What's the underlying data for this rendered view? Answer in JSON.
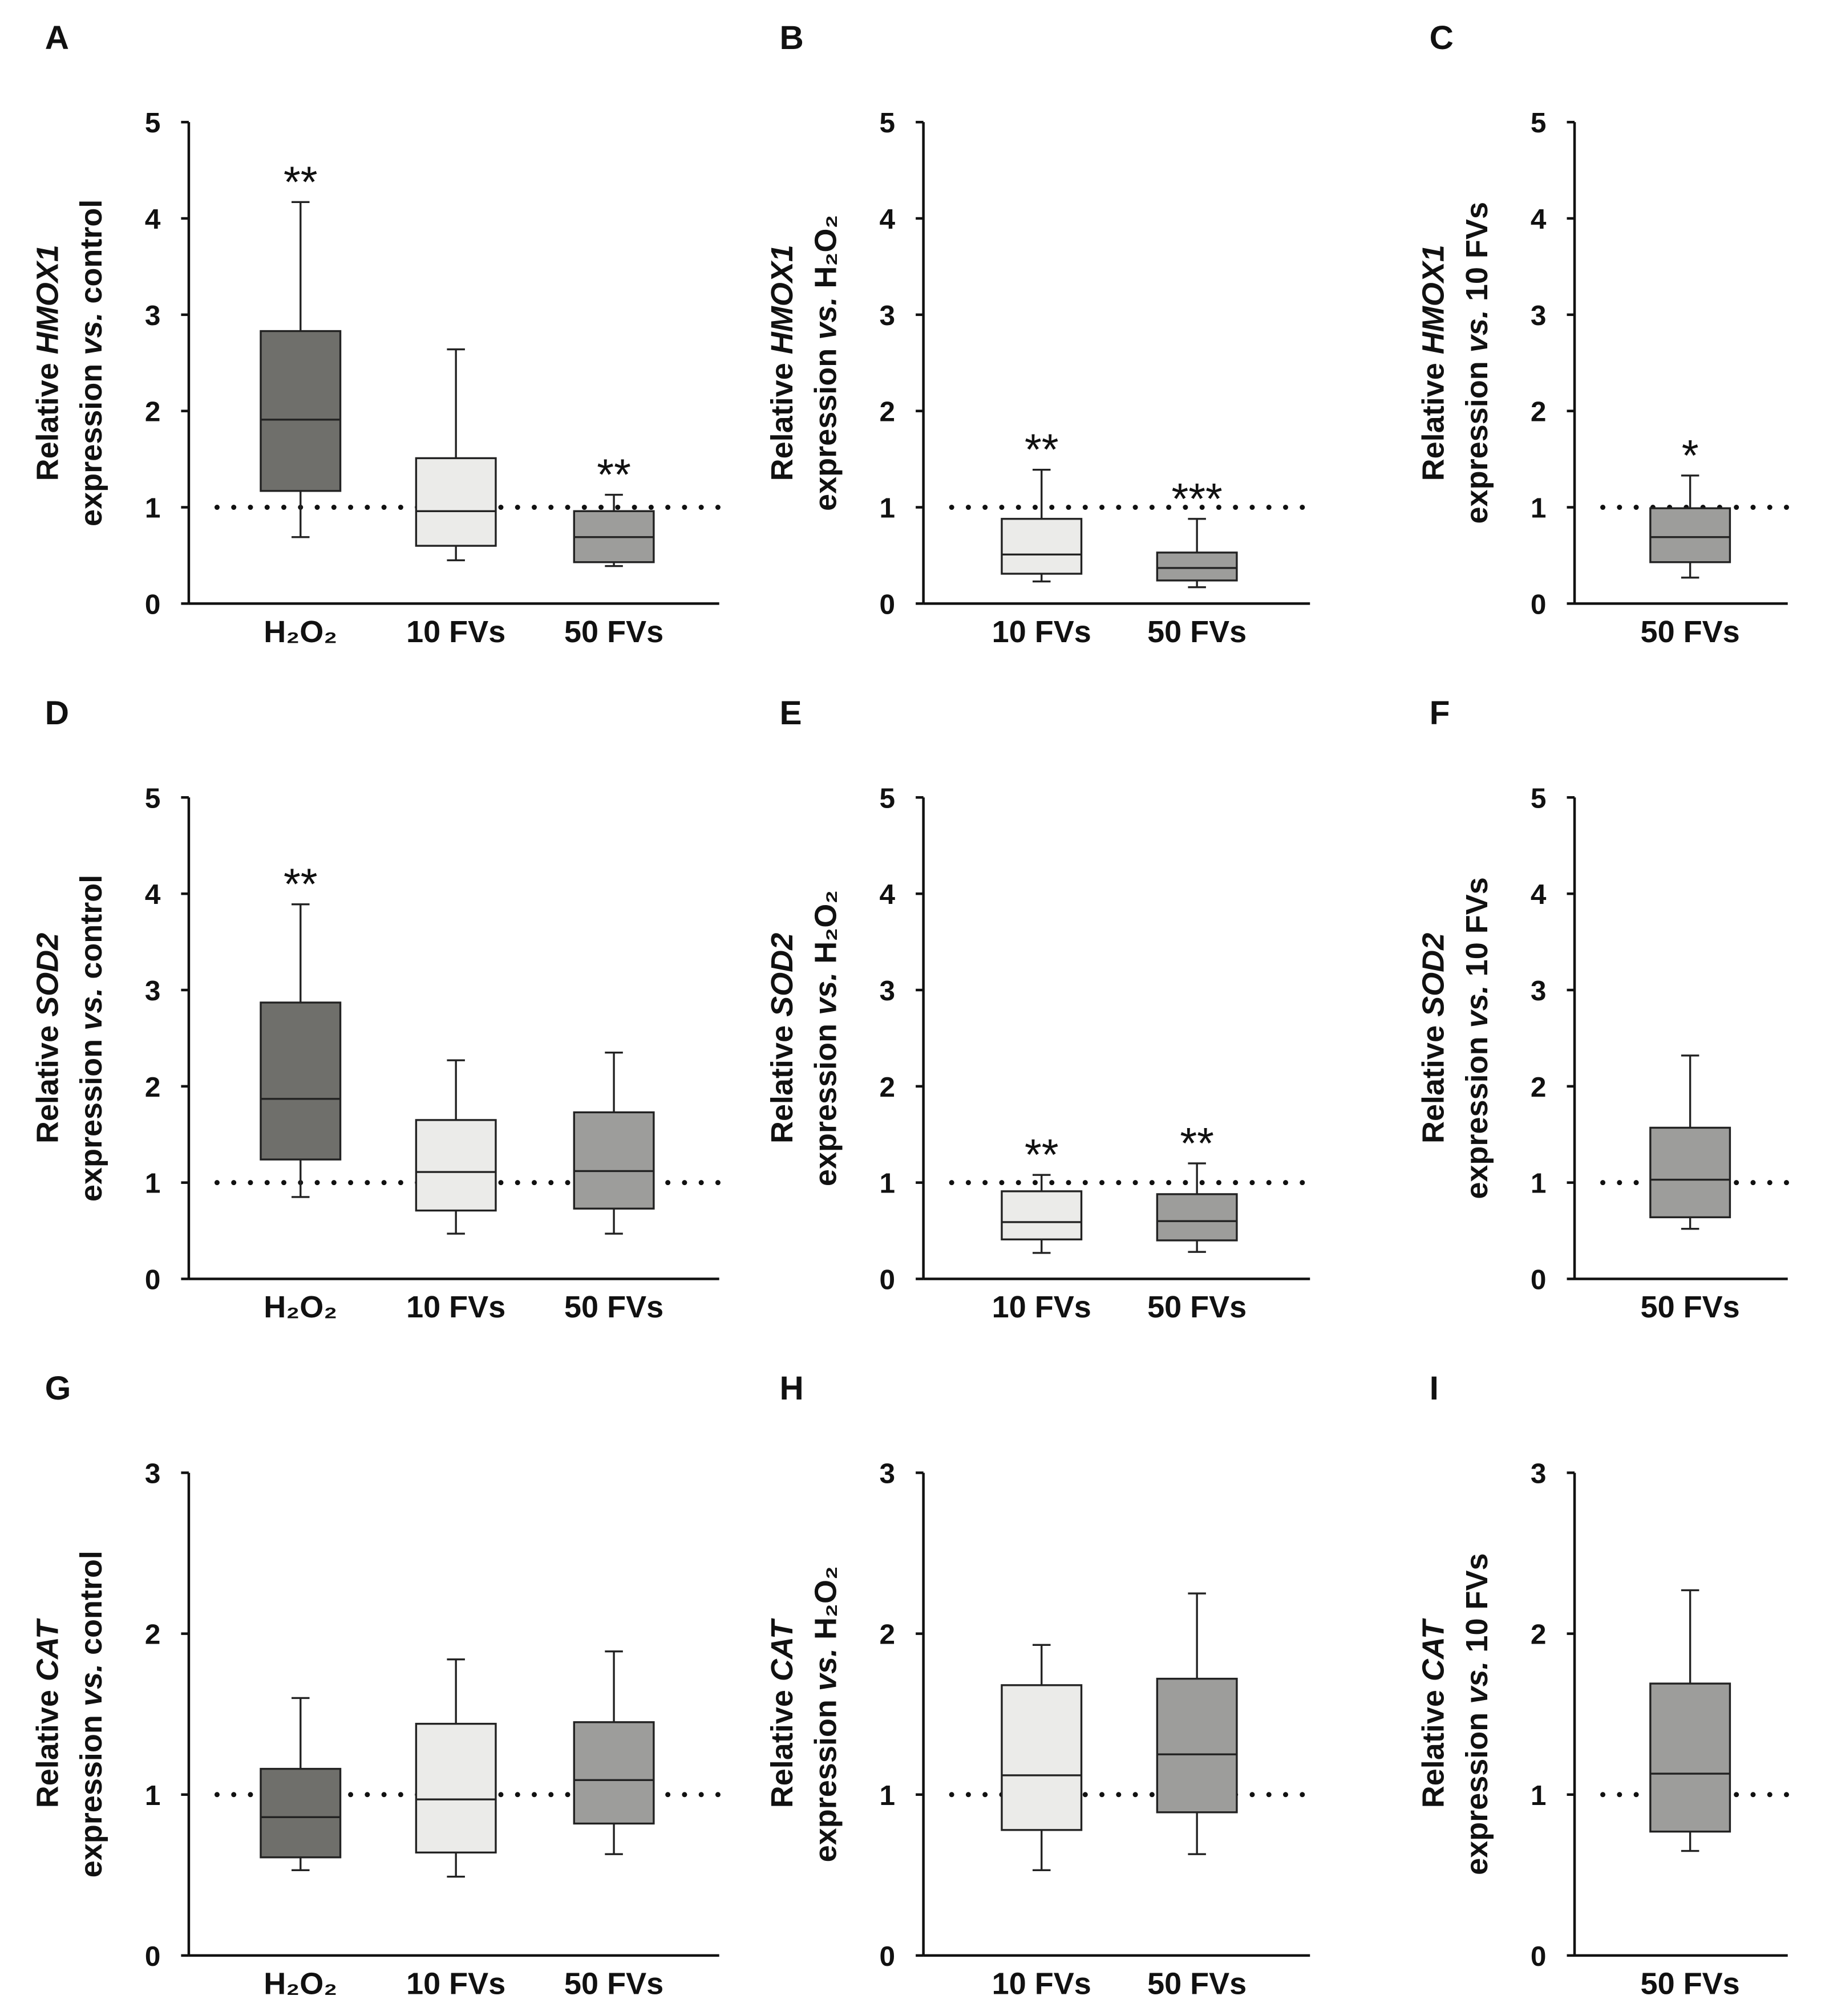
{
  "chart_data": [
    {
      "panel": "A",
      "type": "box",
      "ylabel": {
        "prefix": "Relative ",
        "gene": "HMOX1",
        "line2_a": "expression ",
        "vs": "vs.",
        "line2_b": " control"
      },
      "ylim": [
        0,
        5
      ],
      "yticks": [
        "0",
        "1",
        "2",
        "3",
        "4",
        "5"
      ],
      "reference_line": 1,
      "categories": [
        "H₂O₂",
        "10 FVs",
        "50 FVs"
      ],
      "boxes": [
        {
          "min": 0.69,
          "q1": 1.17,
          "median": 1.91,
          "q3": 2.83,
          "max": 4.17,
          "color": "#6f6f6b",
          "sig": "**"
        },
        {
          "min": 0.45,
          "q1": 0.6,
          "median": 0.96,
          "q3": 1.51,
          "max": 2.64,
          "color": "#ebebe9",
          "sig": ""
        },
        {
          "min": 0.39,
          "q1": 0.43,
          "median": 0.69,
          "q3": 0.96,
          "max": 1.13,
          "color": "#9d9d9b",
          "sig": "**"
        }
      ]
    },
    {
      "panel": "B",
      "type": "box",
      "ylabel": {
        "prefix": "Relative ",
        "gene": "HMOX1",
        "line2_a": "expression ",
        "vs": "vs.",
        "line2_b": " H₂O₂"
      },
      "ylim": [
        0,
        5
      ],
      "yticks": [
        "0",
        "1",
        "2",
        "3",
        "4",
        "5"
      ],
      "reference_line": 1,
      "categories": [
        "10 FVs",
        "50 FVs"
      ],
      "boxes": [
        {
          "min": 0.23,
          "q1": 0.31,
          "median": 0.51,
          "q3": 0.88,
          "max": 1.39,
          "color": "#ebebe9",
          "sig": "**"
        },
        {
          "min": 0.17,
          "q1": 0.24,
          "median": 0.37,
          "q3": 0.53,
          "max": 0.88,
          "color": "#9d9d9b",
          "sig": "***"
        }
      ]
    },
    {
      "panel": "C",
      "type": "box",
      "ylabel": {
        "prefix": "Relative ",
        "gene": "HMOX1",
        "line2_a": "expression ",
        "vs": "vs.",
        "line2_b": " 10 FVs"
      },
      "ylim": [
        0,
        5
      ],
      "yticks": [
        "0",
        "1",
        "2",
        "3",
        "4",
        "5"
      ],
      "reference_line": 1,
      "categories": [
        "50 FVs"
      ],
      "boxes": [
        {
          "min": 0.27,
          "q1": 0.43,
          "median": 0.69,
          "q3": 0.99,
          "max": 1.33,
          "color": "#9d9d9b",
          "sig": "*"
        }
      ]
    },
    {
      "panel": "D",
      "type": "box",
      "ylabel": {
        "prefix": "Relative ",
        "gene": "SOD2",
        "line2_a": "expression ",
        "vs": "vs.",
        "line2_b": " control"
      },
      "ylim": [
        0,
        5
      ],
      "yticks": [
        "0",
        "1",
        "2",
        "3",
        "4",
        "5"
      ],
      "reference_line": 1,
      "categories": [
        "H₂O₂",
        "10 FVs",
        "50 FVs"
      ],
      "boxes": [
        {
          "min": 0.85,
          "q1": 1.24,
          "median": 1.87,
          "q3": 2.87,
          "max": 3.89,
          "color": "#6f6f6b",
          "sig": "**"
        },
        {
          "min": 0.47,
          "q1": 0.71,
          "median": 1.11,
          "q3": 1.65,
          "max": 2.27,
          "color": "#ebebe9",
          "sig": ""
        },
        {
          "min": 0.47,
          "q1": 0.73,
          "median": 1.12,
          "q3": 1.73,
          "max": 2.35,
          "color": "#9d9d9b",
          "sig": ""
        }
      ]
    },
    {
      "panel": "E",
      "type": "box",
      "ylabel": {
        "prefix": "Relative ",
        "gene": "SOD2",
        "line2_a": "expression ",
        "vs": "vs.",
        "line2_b": " H₂O₂"
      },
      "ylim": [
        0,
        5
      ],
      "yticks": [
        "0",
        "1",
        "2",
        "3",
        "4",
        "5"
      ],
      "reference_line": 1,
      "categories": [
        "10 FVs",
        "50 FVs"
      ],
      "boxes": [
        {
          "min": 0.27,
          "q1": 0.41,
          "median": 0.59,
          "q3": 0.91,
          "max": 1.08,
          "color": "#ebebe9",
          "sig": "**"
        },
        {
          "min": 0.28,
          "q1": 0.4,
          "median": 0.6,
          "q3": 0.88,
          "max": 1.2,
          "color": "#9d9d9b",
          "sig": "**"
        }
      ]
    },
    {
      "panel": "F",
      "type": "box",
      "ylabel": {
        "prefix": "Relative ",
        "gene": "SOD2",
        "line2_a": "expression ",
        "vs": "vs.",
        "line2_b": " 10 FVs"
      },
      "ylim": [
        0,
        5
      ],
      "yticks": [
        "0",
        "1",
        "2",
        "3",
        "4",
        "5"
      ],
      "reference_line": 1,
      "categories": [
        "50 FVs"
      ],
      "boxes": [
        {
          "min": 0.52,
          "q1": 0.64,
          "median": 1.03,
          "q3": 1.57,
          "max": 2.32,
          "color": "#9d9d9b",
          "sig": ""
        }
      ]
    },
    {
      "panel": "G",
      "type": "box",
      "ylabel": {
        "prefix": "Relative ",
        "gene": "CAT",
        "line2_a": "expression ",
        "vs": "vs.",
        "line2_b": " control"
      },
      "ylim": [
        0,
        3
      ],
      "yticks": [
        "0",
        "1",
        "2",
        "3"
      ],
      "reference_line": 1,
      "categories": [
        "H₂O₂",
        "10 FVs",
        "50 FVs"
      ],
      "boxes": [
        {
          "min": 0.53,
          "q1": 0.61,
          "median": 0.86,
          "q3": 1.16,
          "max": 1.6,
          "color": "#6f6f6b",
          "sig": ""
        },
        {
          "min": 0.49,
          "q1": 0.64,
          "median": 0.97,
          "q3": 1.44,
          "max": 1.84,
          "color": "#ebebe9",
          "sig": ""
        },
        {
          "min": 0.63,
          "q1": 0.82,
          "median": 1.09,
          "q3": 1.45,
          "max": 1.89,
          "color": "#9d9d9b",
          "sig": ""
        }
      ]
    },
    {
      "panel": "H",
      "type": "box",
      "ylabel": {
        "prefix": "Relative ",
        "gene": "CAT",
        "line2_a": "expression ",
        "vs": "vs.",
        "line2_b": " H₂O₂"
      },
      "ylim": [
        0,
        3
      ],
      "yticks": [
        "0",
        "1",
        "2",
        "3"
      ],
      "reference_line": 1,
      "categories": [
        "10 FVs",
        "50 FVs"
      ],
      "boxes": [
        {
          "min": 0.53,
          "q1": 0.78,
          "median": 1.12,
          "q3": 1.68,
          "max": 1.93,
          "color": "#ebebe9",
          "sig": ""
        },
        {
          "min": 0.63,
          "q1": 0.89,
          "median": 1.25,
          "q3": 1.72,
          "max": 2.25,
          "color": "#9d9d9b",
          "sig": ""
        }
      ]
    },
    {
      "panel": "I",
      "type": "box",
      "ylabel": {
        "prefix": "Relative ",
        "gene": "CAT",
        "line2_a": "expression ",
        "vs": "vs.",
        "line2_b": " 10 FVs"
      },
      "ylim": [
        0,
        3
      ],
      "yticks": [
        "0",
        "1",
        "2",
        "3"
      ],
      "reference_line": 1,
      "categories": [
        "50 FVs"
      ],
      "boxes": [
        {
          "min": 0.65,
          "q1": 0.77,
          "median": 1.13,
          "q3": 1.69,
          "max": 2.27,
          "color": "#9d9d9b",
          "sig": ""
        }
      ]
    }
  ]
}
